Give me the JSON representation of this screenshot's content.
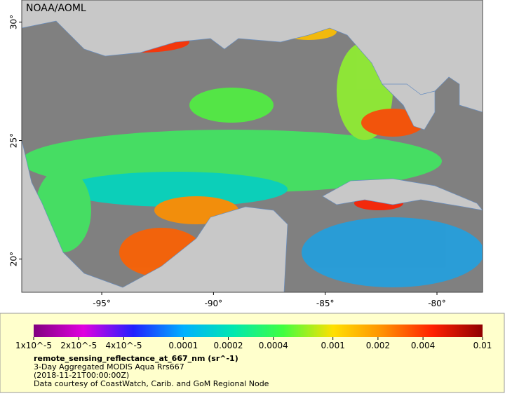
{
  "map": {
    "title": "NOAA/AOML",
    "extent": {
      "lon": [
        -98.58,
        -77.96
      ],
      "lat": [
        18.6,
        30.93
      ]
    },
    "lat_ticks": [
      {
        "value": 30,
        "label": "30°"
      },
      {
        "value": 25,
        "label": "25°"
      },
      {
        "value": 20,
        "label": "20°"
      }
    ],
    "lon_ticks": [
      {
        "value": -95,
        "label": "-95°"
      },
      {
        "value": -90,
        "label": "-90°"
      },
      {
        "value": -85,
        "label": "-85°"
      },
      {
        "value": -80,
        "label": "-80°"
      }
    ]
  },
  "colorbar": {
    "range": [
      1e-05,
      0.01
    ],
    "scale": "log",
    "ticks": [
      {
        "value": 1e-05,
        "label": "1x10^-5"
      },
      {
        "value": 2e-05,
        "label": "2x10^-5"
      },
      {
        "value": 4e-05,
        "label": "4x10^-5"
      },
      0.0001,
      0.0002,
      0.0004,
      0.001,
      0.002,
      0.004,
      0.01
    ],
    "colors": [
      "#80007f",
      "#e000e0",
      "#2020ff",
      "#00b0ff",
      "#00e8b0",
      "#40ff40",
      "#ffe000",
      "#ff9000",
      "#ff2000",
      "#900000"
    ]
  },
  "caption": {
    "variable": "remote_sensing_reflectance_at_667_nm (sr^-1)",
    "title": "3-Day Aggregated MODIS Aqua Rrs667",
    "time": "(2018-11-21T00:00:00Z)",
    "credit": "Data courtesy of CoastWatch, Carib. and GoM Regional Node"
  }
}
